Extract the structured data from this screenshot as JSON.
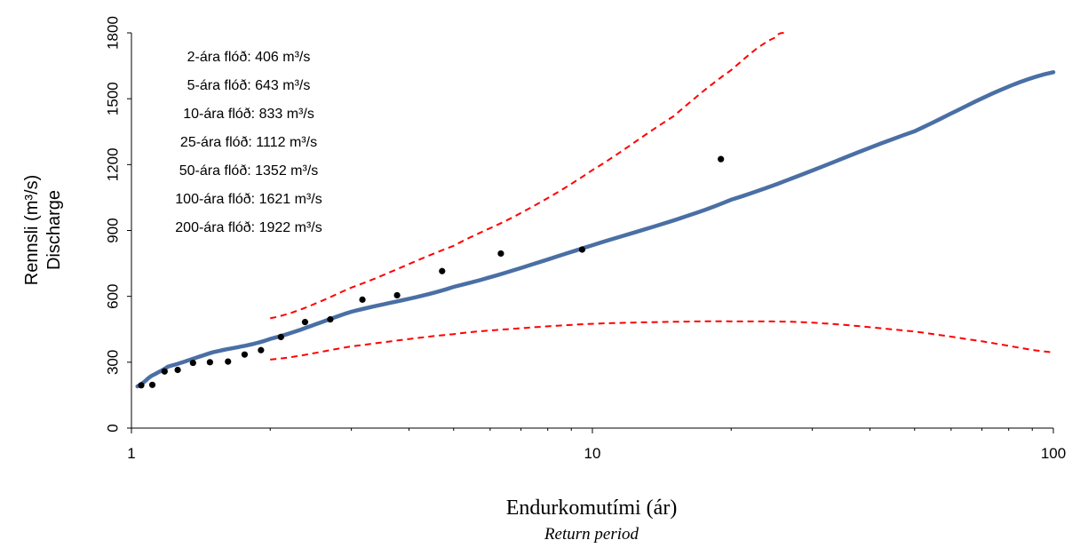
{
  "chart_data": {
    "type": "scatter",
    "x_scale": "log",
    "xlim": [
      1,
      100
    ],
    "ylim": [
      0,
      1800
    ],
    "x_ticks": [
      1,
      10,
      100
    ],
    "x_tick_labels": [
      "1",
      "10",
      "100"
    ],
    "y_ticks": [
      0,
      300,
      600,
      900,
      1200,
      1500,
      1800
    ],
    "y_tick_labels": [
      "0",
      "300",
      "600",
      "900",
      "1200",
      "1500",
      "1800"
    ],
    "xlabel": "Endurkomutími (ár)",
    "xlabel_sub": "Return period",
    "ylabel_line1": "Rennsli (m³/s)",
    "ylabel_line2": "Discharge",
    "grid": false,
    "annotations": [
      "2-ára flóð: 406 m³/s",
      "5-ára flóð: 643 m³/s",
      "10-ára flóð: 833 m³/s",
      "25-ára flóð: 1112 m³/s",
      "50-ára flóð: 1352 m³/s",
      "100-ára flóð: 1621 m³/s",
      "200-ára flóð: 1922 m³/s"
    ],
    "observed_points": {
      "color": "#000000",
      "x": [
        1.05,
        1.11,
        1.18,
        1.26,
        1.36,
        1.48,
        1.62,
        1.76,
        1.91,
        2.11,
        2.38,
        2.7,
        3.17,
        3.77,
        4.72,
        6.33,
        9.5,
        19.0
      ],
      "y": [
        195,
        197,
        258,
        265,
        297,
        300,
        303,
        335,
        355,
        415,
        483,
        495,
        585,
        605,
        715,
        795,
        813,
        1225
      ]
    },
    "fitted_curve": {
      "color": "#4a6fa5",
      "x": [
        1.03,
        1.1,
        1.2,
        1.5,
        2,
        3,
        5,
        10,
        20,
        50,
        100
      ],
      "y": [
        190,
        235,
        280,
        345,
        406,
        530,
        643,
        833,
        1040,
        1352,
        1621
      ]
    },
    "upper_bound": {
      "color": "#ff0000",
      "style": "dashed",
      "x": [
        2,
        3,
        5,
        7,
        10,
        15,
        20,
        25,
        26.5
      ],
      "y": [
        500,
        640,
        830,
        980,
        1175,
        1420,
        1630,
        1780,
        1800
      ]
    },
    "lower_bound": {
      "color": "#ff0000",
      "style": "dashed",
      "x": [
        2,
        3,
        5,
        7,
        10,
        15,
        20,
        30,
        50,
        70,
        100
      ],
      "y": [
        312,
        372,
        428,
        455,
        475,
        484,
        486,
        480,
        440,
        395,
        345
      ]
    }
  }
}
